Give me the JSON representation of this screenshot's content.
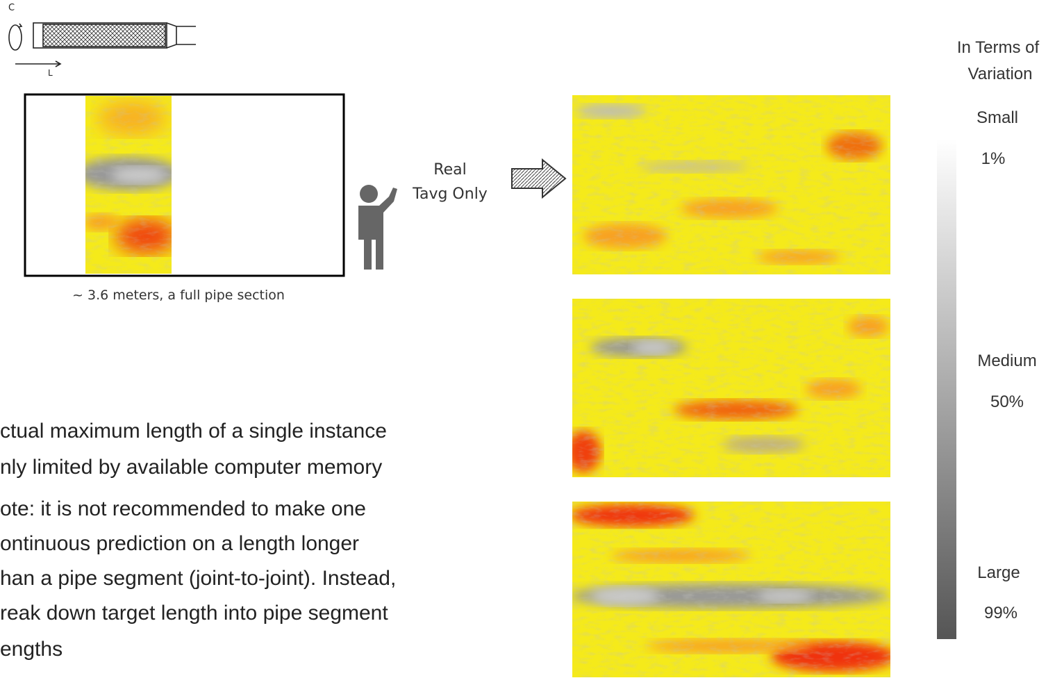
{
  "pipe_diagram": {
    "circumference_label": "C",
    "length_label": "L"
  },
  "single_section": {
    "caption": "~ 3.6 meters, a full pipe section"
  },
  "prompt": {
    "lines": [
      "Real",
      "Tavg Only"
    ]
  },
  "legend": {
    "title_lines": [
      "In Terms of",
      "Variation"
    ],
    "levels": [
      {
        "name": "Small",
        "value": "1%"
      },
      {
        "name": "Medium",
        "value": "50%"
      },
      {
        "name": "Large",
        "value": "99%"
      }
    ]
  },
  "notes": {
    "lines": [
      "ctual maximum length of a single instance",
      "nly limited by available computer memory",
      "ote: it is not recommended to make one",
      "ontinuous prediction on a length longer",
      "han a pipe segment (joint-to-joint). Instead,",
      "reak down target length into pipe segment",
      "engths"
    ]
  }
}
